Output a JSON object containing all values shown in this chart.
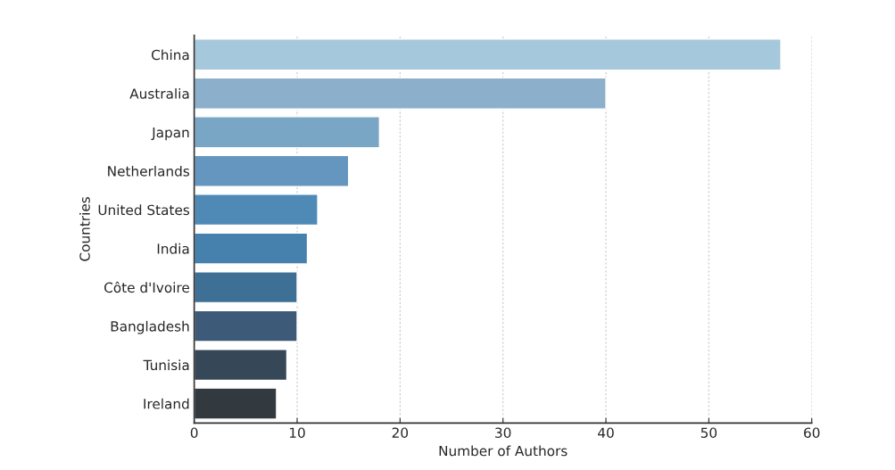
{
  "chart_data": {
    "type": "bar",
    "orientation": "horizontal",
    "xlabel": "Number of Authors",
    "ylabel": "Countries",
    "categories": [
      "China",
      "Australia",
      "Japan",
      "Netherlands",
      "United States",
      "India",
      "Côte d'Ivoire",
      "Bangladesh",
      "Tunisia",
      "Ireland"
    ],
    "values": [
      57,
      40,
      18,
      15,
      12,
      11,
      10,
      10,
      9,
      8
    ],
    "colors": [
      "#a6c8dc",
      "#8cb0cc",
      "#78a6c4",
      "#6496bf",
      "#4f8ab7",
      "#4681ad",
      "#3e6f95",
      "#3d5b78",
      "#364758",
      "#32393f"
    ],
    "xlim": [
      0,
      60
    ],
    "xticks": [
      0,
      10,
      20,
      30,
      40,
      50,
      60
    ],
    "grid": "x"
  }
}
